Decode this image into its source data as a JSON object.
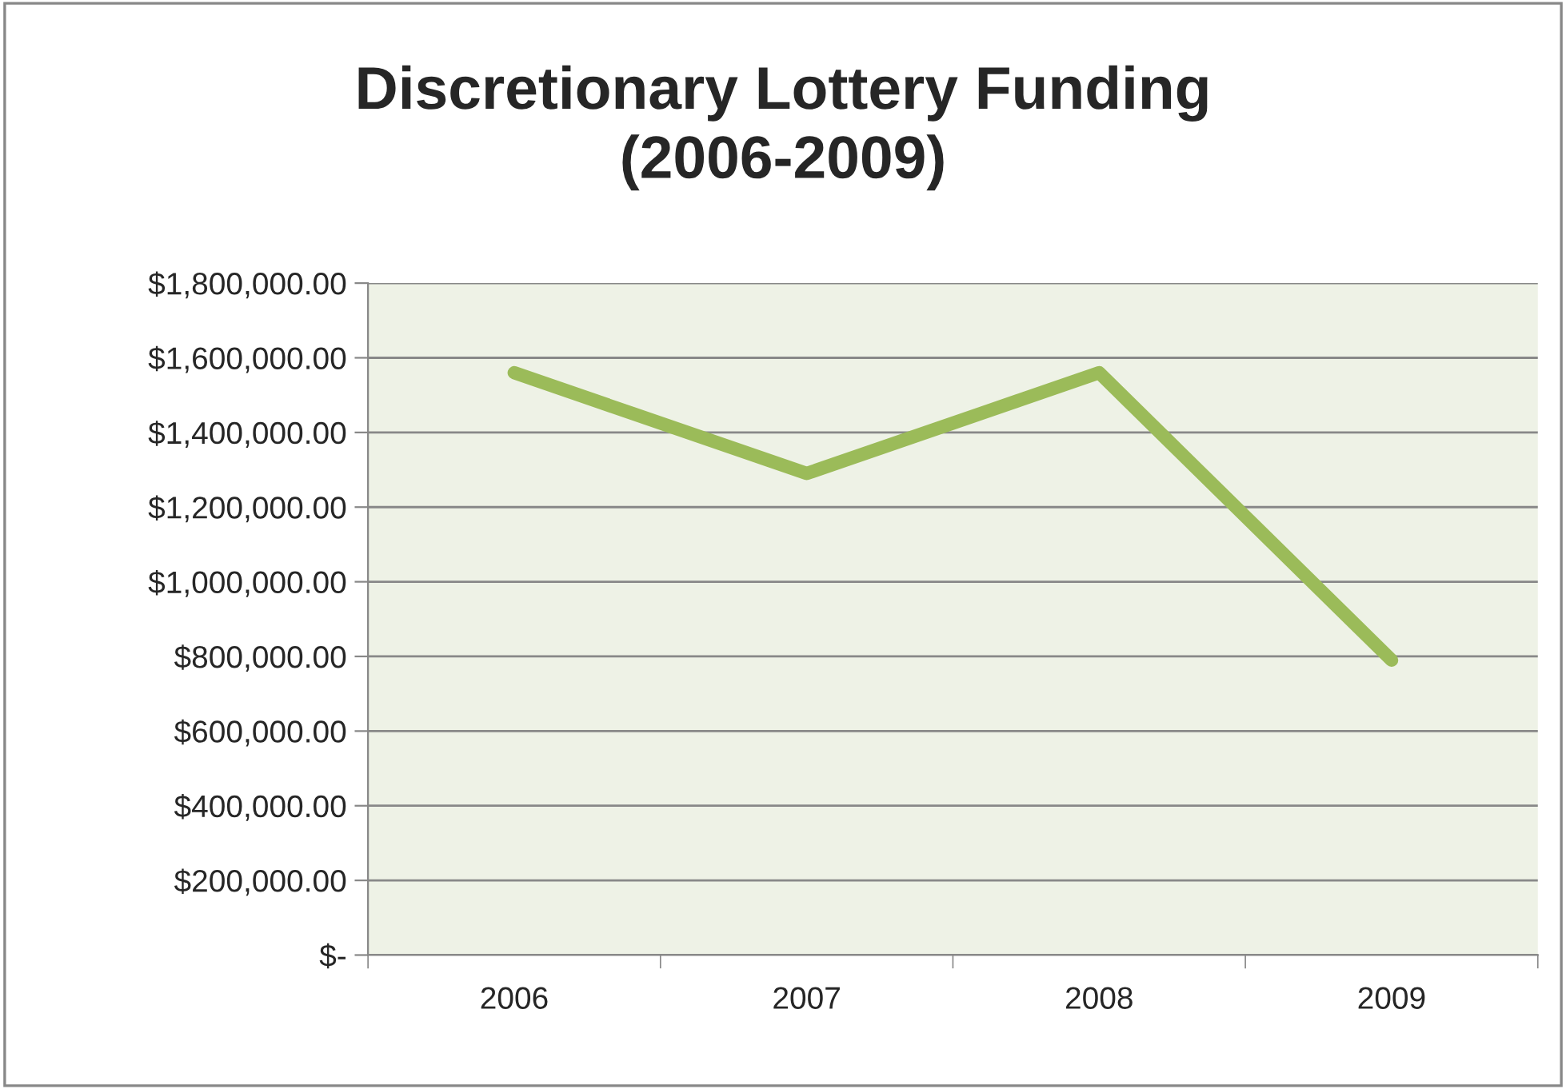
{
  "chart_data": {
    "type": "line",
    "title": "Discretionary Lottery Funding\n(2006-2009)",
    "categories": [
      "2006",
      "2007",
      "2008",
      "2009"
    ],
    "series": [
      {
        "color": "#9bbb59",
        "values": [
          1560000,
          1290000,
          1560000,
          790000
        ]
      }
    ],
    "ylim": [
      0,
      1800000
    ],
    "yticks": [
      {
        "value": 0,
        "label": "$-"
      },
      {
        "value": 200000,
        "label": "$200,000.00"
      },
      {
        "value": 400000,
        "label": "$400,000.00"
      },
      {
        "value": 600000,
        "label": "$600,000.00"
      },
      {
        "value": 800000,
        "label": "$800,000.00"
      },
      {
        "value": 1000000,
        "label": "$1,000,000.00"
      },
      {
        "value": 1200000,
        "label": "$1,200,000.00"
      },
      {
        "value": 1400000,
        "label": "$1,400,000.00"
      },
      {
        "value": 1600000,
        "label": "$1,600,000.00"
      },
      {
        "value": 1800000,
        "label": "$1,800,000.00"
      }
    ],
    "grid": "y",
    "marker": "none",
    "line_style": "solid"
  }
}
